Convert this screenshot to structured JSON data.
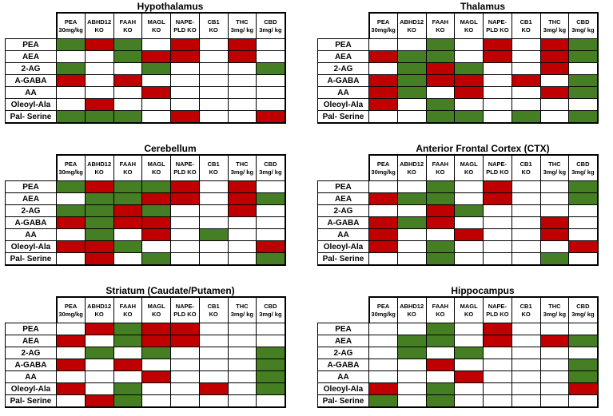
{
  "figure": {
    "description_title": "",
    "cell_color_codes": {
      "G": "#467F23",
      "R": "#C00000",
      "W": "#FFFFFF"
    },
    "grid_color": "#000000"
  },
  "chart_data": {
    "type": "heatmap",
    "columns": [
      "PEA\n30mg/kg",
      "ABHD12\nKO",
      "FAAH\nKO",
      "MAGL\nKO",
      "NAPE-\nPLD KO",
      "CB1\nKO",
      "THC\n3mg/ kg",
      "CBD\n3mg/ kg"
    ],
    "rows": [
      "PEA",
      "AEA",
      "2-AG",
      "A-GABA",
      "AA",
      "Oleoyl-Ala",
      "Pal- Serine"
    ],
    "legend": {
      "G": "green",
      "R": "red",
      "W": "white"
    },
    "panels": [
      {
        "title": "Hypothalamus",
        "cells": [
          [
            "G",
            "R",
            "G",
            "W",
            "R",
            "W",
            "R",
            "W"
          ],
          [
            "W",
            "W",
            "G",
            "R",
            "R",
            "W",
            "R",
            "W"
          ],
          [
            "G",
            "W",
            "W",
            "G",
            "W",
            "W",
            "W",
            "G"
          ],
          [
            "R",
            "W",
            "R",
            "W",
            "W",
            "W",
            "W",
            "W"
          ],
          [
            "W",
            "W",
            "W",
            "R",
            "W",
            "W",
            "W",
            "W"
          ],
          [
            "W",
            "R",
            "W",
            "W",
            "W",
            "W",
            "W",
            "W"
          ],
          [
            "G",
            "G",
            "G",
            "W",
            "R",
            "W",
            "W",
            "R"
          ]
        ]
      },
      {
        "title": "Thalamus",
        "cells": [
          [
            "W",
            "W",
            "G",
            "W",
            "R",
            "W",
            "R",
            "G"
          ],
          [
            "R",
            "G",
            "G",
            "W",
            "R",
            "W",
            "R",
            "G"
          ],
          [
            "W",
            "G",
            "R",
            "G",
            "W",
            "W",
            "R",
            "W"
          ],
          [
            "R",
            "G",
            "R",
            "R",
            "W",
            "R",
            "W",
            "G"
          ],
          [
            "R",
            "G",
            "W",
            "R",
            "W",
            "W",
            "R",
            "G"
          ],
          [
            "R",
            "W",
            "G",
            "W",
            "W",
            "W",
            "W",
            "W"
          ],
          [
            "W",
            "W",
            "G",
            "G",
            "W",
            "G",
            "W",
            "G"
          ]
        ]
      },
      {
        "title": "Cerebellum",
        "cells": [
          [
            "G",
            "R",
            "G",
            "G",
            "R",
            "W",
            "R",
            "W"
          ],
          [
            "W",
            "G",
            "G",
            "R",
            "R",
            "W",
            "R",
            "G"
          ],
          [
            "G",
            "G",
            "R",
            "G",
            "W",
            "W",
            "R",
            "W"
          ],
          [
            "R",
            "G",
            "R",
            "R",
            "W",
            "W",
            "W",
            "W"
          ],
          [
            "W",
            "G",
            "W",
            "R",
            "W",
            "G",
            "W",
            "W"
          ],
          [
            "R",
            "R",
            "G",
            "W",
            "W",
            "W",
            "W",
            "R"
          ],
          [
            "W",
            "R",
            "W",
            "G",
            "W",
            "W",
            "W",
            "G"
          ]
        ]
      },
      {
        "title": "Anterior Frontal Cortex (CTX)",
        "cells": [
          [
            "W",
            "W",
            "G",
            "W",
            "R",
            "W",
            "W",
            "G"
          ],
          [
            "R",
            "G",
            "G",
            "W",
            "R",
            "W",
            "W",
            "G"
          ],
          [
            "W",
            "W",
            "R",
            "G",
            "W",
            "W",
            "W",
            "W"
          ],
          [
            "R",
            "G",
            "R",
            "W",
            "W",
            "W",
            "R",
            "W"
          ],
          [
            "R",
            "W",
            "W",
            "R",
            "W",
            "W",
            "R",
            "W"
          ],
          [
            "R",
            "W",
            "G",
            "W",
            "W",
            "W",
            "W",
            "R"
          ],
          [
            "W",
            "W",
            "G",
            "W",
            "W",
            "W",
            "G",
            "W"
          ]
        ]
      },
      {
        "title": "Striatum (Caudate/Putamen)",
        "cells": [
          [
            "W",
            "R",
            "G",
            "R",
            "R",
            "W",
            "W",
            "W"
          ],
          [
            "R",
            "W",
            "G",
            "R",
            "R",
            "W",
            "W",
            "W"
          ],
          [
            "W",
            "G",
            "W",
            "G",
            "W",
            "W",
            "W",
            "G"
          ],
          [
            "R",
            "W",
            "R",
            "W",
            "W",
            "W",
            "W",
            "G"
          ],
          [
            "W",
            "W",
            "W",
            "R",
            "W",
            "W",
            "W",
            "G"
          ],
          [
            "R",
            "W",
            "G",
            "W",
            "W",
            "R",
            "W",
            "G"
          ],
          [
            "W",
            "R",
            "G",
            "W",
            "W",
            "W",
            "W",
            "W"
          ]
        ]
      },
      {
        "title": "Hippocampus",
        "cells": [
          [
            "W",
            "W",
            "G",
            "W",
            "R",
            "W",
            "W",
            "W"
          ],
          [
            "W",
            "G",
            "G",
            "W",
            "R",
            "W",
            "R",
            "G"
          ],
          [
            "W",
            "G",
            "W",
            "G",
            "W",
            "W",
            "W",
            "W"
          ],
          [
            "W",
            "W",
            "R",
            "W",
            "W",
            "W",
            "W",
            "G"
          ],
          [
            "W",
            "W",
            "W",
            "R",
            "W",
            "W",
            "W",
            "G"
          ],
          [
            "R",
            "W",
            "G",
            "W",
            "W",
            "W",
            "W",
            "R"
          ],
          [
            "G",
            "W",
            "G",
            "W",
            "W",
            "W",
            "W",
            "W"
          ]
        ]
      }
    ]
  }
}
